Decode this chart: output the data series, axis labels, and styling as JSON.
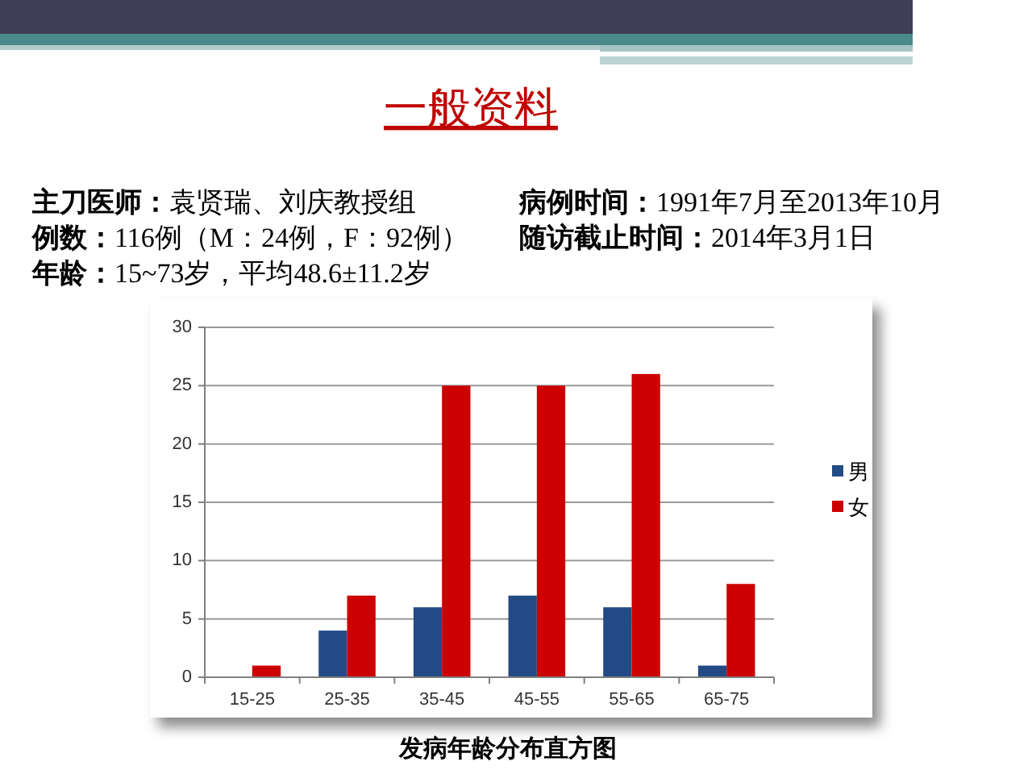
{
  "chart_data": {
    "type": "bar",
    "title": "一般资料",
    "annotations": [
      "主刀医师：袁贤瑞、刘庆教授组",
      "病例时间：1991年7月至2013年10月",
      "例数：116例（M：24例，F：92例）",
      "随访截止时间：2014年3月1日",
      "年龄：15~73岁，平均48.6±11.2岁",
      "发病年龄分布直方图"
    ],
    "categories": [
      "15-25",
      "25-35",
      "35-45",
      "45-55",
      "55-65",
      "65-75"
    ],
    "series": [
      {
        "name": "男",
        "color": "#234a85",
        "values": [
          0,
          4,
          6,
          7,
          6,
          1
        ]
      },
      {
        "name": "女",
        "color": "#cc0000",
        "values": [
          1,
          7,
          25,
          25,
          26,
          8
        ]
      }
    ],
    "ylim": [
      0,
      30
    ],
    "yticks": [
      0,
      5,
      10,
      15,
      20,
      25,
      30
    ],
    "grid": "y",
    "legend": "right"
  }
}
